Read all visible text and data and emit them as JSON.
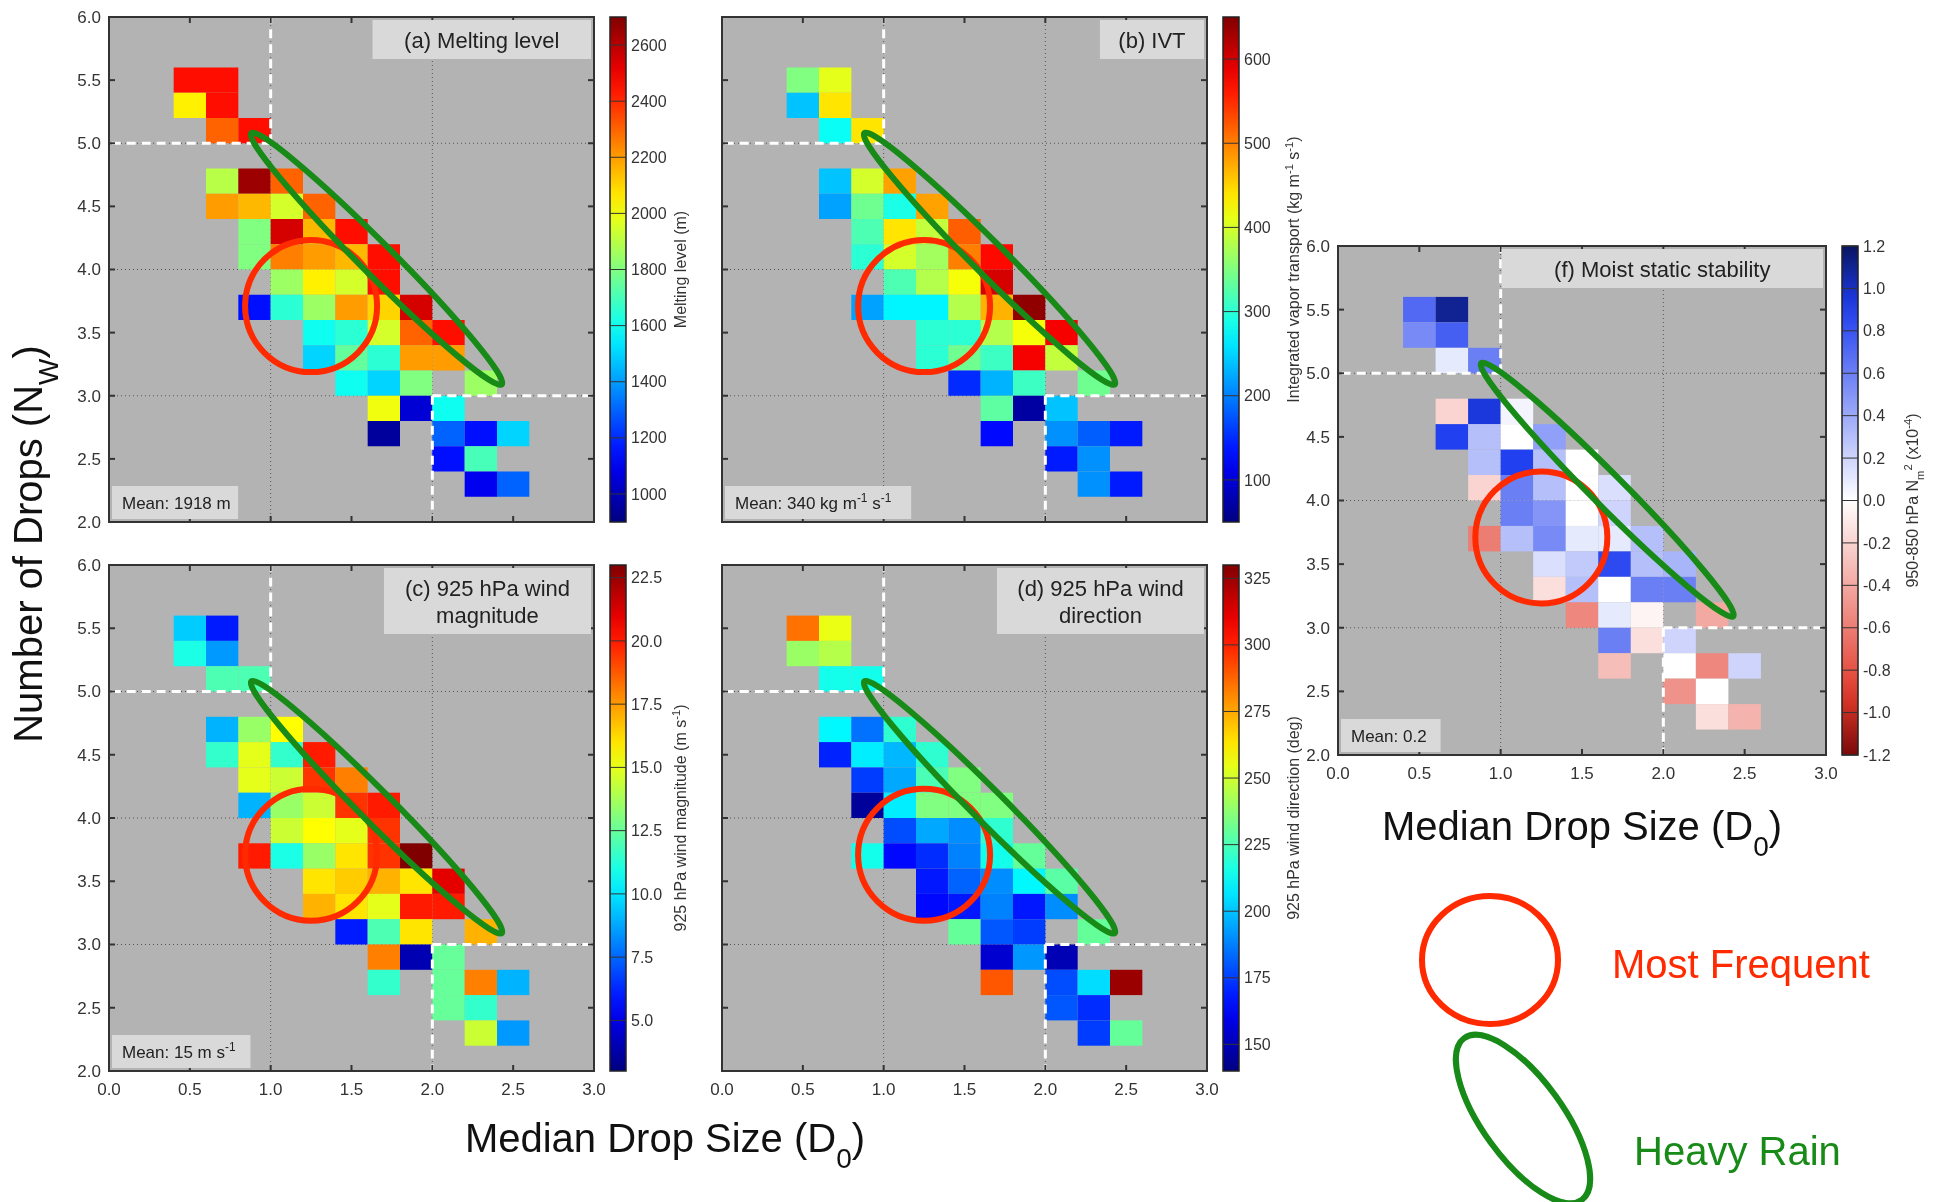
{
  "chart_data": [
    {
      "type": "scatter",
      "marker": "square",
      "title": "(a) Melting level",
      "ylabel": "Number of Drops (N$_{W}$)",
      "clabel": "Melting level (m)",
      "annotations": [
        "Mean: 1918 m"
      ],
      "tick_labels": "y",
      "grid": true,
      "xlim": [
        0,
        3
      ],
      "ylim": [
        2,
        6
      ],
      "xticks": [
        0,
        0.5,
        1,
        1.5,
        2,
        2.5,
        3
      ],
      "yticks": [
        {
          "value": 2,
          "label": "2.0"
        },
        2.5,
        {
          "value": 3,
          "label": "3.0"
        },
        3.5,
        {
          "value": 4,
          "label": "4.0"
        },
        4.5,
        {
          "value": 5,
          "label": "5.0"
        },
        5.5,
        {
          "value": 6,
          "label": "6.0"
        }
      ],
      "clim": [
        900,
        2700
      ],
      "cticks": [
        1000,
        1200,
        1400,
        1600,
        1800,
        2000,
        2200,
        2400,
        2600
      ],
      "ref_lines": [
        {
          "axis": "x",
          "value": 1,
          "color": "#ffffff",
          "line_style": "dashed"
        },
        {
          "axis": "y",
          "value": 5,
          "color": "#ffffff",
          "line_style": "dashed"
        },
        {
          "axis": "x",
          "value": 2,
          "color": "#ffffff",
          "line_style": "dashed"
        },
        {
          "axis": "y",
          "value": 3,
          "color": "#ffffff",
          "line_style": "dashed"
        }
      ],
      "x": [
        0.5,
        0.7,
        0.5,
        0.7,
        0.7,
        0.9,
        0.7,
        0.9,
        1.1,
        0.7,
        0.9,
        1.1,
        1.3,
        0.9,
        1.1,
        1.3,
        1.5,
        0.9,
        1.1,
        1.3,
        1.5,
        1.7,
        1.1,
        1.3,
        1.5,
        1.7,
        0.9,
        1.1,
        1.3,
        1.5,
        1.7,
        1.9,
        1.3,
        1.5,
        1.7,
        1.9,
        2.1,
        1.3,
        1.5,
        1.7,
        1.9,
        2.1,
        1.5,
        1.7,
        1.9,
        2.3,
        1.7,
        1.9,
        2.1,
        1.7,
        2.1,
        2.3,
        2.5,
        2.1,
        2.3,
        2.3,
        2.5
      ],
      "values": [
        5.5,
        5.5,
        5.3,
        5.3,
        5.1,
        5.1,
        4.7,
        4.7,
        4.7,
        4.5,
        4.5,
        4.5,
        4.5,
        4.3,
        4.3,
        4.3,
        4.3,
        4.1,
        4.1,
        4.1,
        4.1,
        4.1,
        3.9,
        3.9,
        3.9,
        3.9,
        3.7,
        3.7,
        3.7,
        3.7,
        3.7,
        3.7,
        3.5,
        3.5,
        3.5,
        3.5,
        3.5,
        3.3,
        3.3,
        3.3,
        3.3,
        3.3,
        3.1,
        3.1,
        3.1,
        3.1,
        2.9,
        2.9,
        2.9,
        2.7,
        2.7,
        2.7,
        2.7,
        2.5,
        2.5,
        2.3,
        2.3
      ],
      "cvalues": [
        2450,
        2450,
        2050,
        2450,
        2300,
        2450,
        1900,
        2650,
        2300,
        2200,
        2150,
        1950,
        2300,
        1800,
        2550,
        2150,
        2450,
        1800,
        2250,
        2200,
        2150,
        2450,
        1850,
        2050,
        1950,
        2450,
        1150,
        1650,
        1850,
        2200,
        2100,
        2550,
        1600,
        1650,
        1950,
        2300,
        2450,
        1500,
        1750,
        1650,
        2200,
        2200,
        1600,
        1500,
        1800,
        1850,
        2000,
        1050,
        1600,
        950,
        1300,
        1150,
        1500,
        1150,
        1700,
        1100,
        1300
      ]
    },
    {
      "type": "scatter",
      "marker": "square",
      "title": "(b) IVT",
      "clabel": "Integrated vapor transport (kg m$^{-1}$ s$^{-1}$)",
      "annotations": [
        "Mean: 340 kg m$^{-1}$ s$^{-1}$"
      ],
      "tick_labels": false,
      "grid": true,
      "xlim": [
        0,
        3
      ],
      "ylim": [
        2,
        6
      ],
      "xticks": [
        0,
        0.5,
        1,
        1.5,
        2,
        2.5,
        3
      ],
      "yticks": [
        2,
        2.5,
        3,
        3.5,
        4,
        4.5,
        5,
        5.5,
        6
      ],
      "clim": [
        50,
        650
      ],
      "cticks": [
        100,
        200,
        300,
        400,
        500,
        600
      ],
      "ref_lines": [
        {
          "axis": "x",
          "value": 1,
          "color": "#ffffff",
          "line_style": "dashed"
        },
        {
          "axis": "y",
          "value": 5,
          "color": "#ffffff",
          "line_style": "dashed"
        },
        {
          "axis": "x",
          "value": 2,
          "color": "#ffffff",
          "line_style": "dashed"
        },
        {
          "axis": "y",
          "value": 3,
          "color": "#ffffff",
          "line_style": "dashed"
        }
      ],
      "x": [
        0.5,
        0.7,
        0.5,
        0.7,
        0.7,
        0.9,
        0.7,
        0.9,
        1.1,
        0.7,
        0.9,
        1.1,
        1.3,
        0.9,
        1.1,
        1.3,
        1.5,
        0.9,
        1.1,
        1.3,
        1.5,
        1.7,
        1.1,
        1.3,
        1.5,
        1.7,
        0.9,
        1.1,
        1.3,
        1.5,
        1.7,
        1.9,
        1.3,
        1.5,
        1.7,
        1.9,
        2.1,
        1.3,
        1.5,
        1.7,
        1.9,
        2.1,
        1.5,
        1.7,
        1.9,
        2.3,
        1.7,
        1.9,
        2.1,
        1.7,
        2.1,
        2.3,
        2.5,
        2.1,
        2.3,
        2.3,
        2.5
      ],
      "values": [
        5.5,
        5.5,
        5.3,
        5.3,
        5.1,
        5.1,
        4.7,
        4.7,
        4.7,
        4.5,
        4.5,
        4.5,
        4.5,
        4.3,
        4.3,
        4.3,
        4.3,
        4.1,
        4.1,
        4.1,
        4.1,
        4.1,
        3.9,
        3.9,
        3.9,
        3.9,
        3.7,
        3.7,
        3.7,
        3.7,
        3.7,
        3.7,
        3.5,
        3.5,
        3.5,
        3.5,
        3.5,
        3.3,
        3.3,
        3.3,
        3.3,
        3.3,
        3.1,
        3.1,
        3.1,
        3.1,
        2.9,
        2.9,
        2.9,
        2.7,
        2.7,
        2.7,
        2.7,
        2.5,
        2.5,
        2.3,
        2.3
      ],
      "cvalues": [
        350,
        410,
        240,
        440,
        280,
        440,
        240,
        400,
        480,
        220,
        340,
        290,
        480,
        320,
        440,
        390,
        520,
        300,
        400,
        370,
        500,
        570,
        320,
        380,
        420,
        600,
        220,
        270,
        270,
        380,
        470,
        640,
        300,
        300,
        380,
        420,
        580,
        300,
        340,
        310,
        580,
        390,
        150,
        230,
        310,
        340,
        330,
        70,
        240,
        130,
        210,
        180,
        140,
        140,
        210,
        210,
        140
      ]
    },
    {
      "type": "scatter",
      "marker": "square",
      "title": "(c) 925 hPa wind magnitude",
      "xlabel": "Median Drop Size (D$_{0}$)",
      "clabel": "925 hPa wind magnitude (m s$^{-1}$)",
      "annotations": [
        "Mean: 15 m s$^{-1}$"
      ],
      "grid": true,
      "xlim": [
        0,
        3
      ],
      "ylim": [
        2,
        6
      ],
      "xticks": [
        {
          "value": 0,
          "label": "0.0"
        },
        0.5,
        {
          "value": 1,
          "label": "1.0"
        },
        1.5,
        {
          "value": 2,
          "label": "2.0"
        },
        2.5,
        {
          "value": 3,
          "label": "3.0"
        }
      ],
      "yticks": [
        {
          "value": 2,
          "label": "2.0"
        },
        2.5,
        {
          "value": 3,
          "label": "3.0"
        },
        3.5,
        {
          "value": 4,
          "label": "4.0"
        },
        4.5,
        {
          "value": 5,
          "label": "5.0"
        },
        5.5,
        {
          "value": 6,
          "label": "6.0"
        }
      ],
      "clim": [
        3,
        23
      ],
      "cticks": [
        {
          "value": 5,
          "label": "5.0"
        },
        7.5,
        {
          "value": 10,
          "label": "10.0"
        },
        12.5,
        {
          "value": 15,
          "label": "15.0"
        },
        17.5,
        {
          "value": 20,
          "label": "20.0"
        },
        22.5
      ],
      "ref_lines": [
        {
          "axis": "x",
          "value": 1,
          "color": "#ffffff",
          "line_style": "dashed"
        },
        {
          "axis": "y",
          "value": 5,
          "color": "#ffffff",
          "line_style": "dashed"
        },
        {
          "axis": "x",
          "value": 2,
          "color": "#ffffff",
          "line_style": "dashed"
        },
        {
          "axis": "y",
          "value": 3,
          "color": "#ffffff",
          "line_style": "dashed"
        }
      ],
      "x": [
        0.5,
        0.7,
        0.5,
        0.7,
        0.7,
        0.9,
        0.7,
        0.9,
        1.1,
        0.7,
        0.9,
        1.1,
        1.3,
        0.9,
        1.1,
        1.3,
        1.5,
        0.9,
        1.1,
        1.3,
        1.5,
        1.7,
        1.1,
        1.3,
        1.5,
        1.7,
        0.9,
        1.1,
        1.3,
        1.5,
        1.7,
        1.9,
        1.3,
        1.5,
        1.7,
        1.9,
        2.1,
        1.3,
        1.5,
        1.7,
        1.9,
        2.1,
        1.5,
        1.7,
        1.9,
        2.3,
        1.7,
        1.9,
        2.1,
        1.7,
        2.1,
        2.3,
        2.5,
        2.1,
        2.3,
        2.3,
        2.5
      ],
      "values": [
        5.5,
        5.5,
        5.3,
        5.3,
        5.1,
        5.1,
        4.7,
        4.7,
        4.7,
        4.5,
        4.5,
        4.5,
        4.5,
        4.3,
        4.3,
        4.3,
        4.3,
        4.1,
        4.1,
        4.1,
        4.1,
        4.1,
        3.9,
        3.9,
        3.9,
        3.9,
        3.7,
        3.7,
        3.7,
        3.7,
        3.7,
        3.7,
        3.5,
        3.5,
        3.5,
        3.5,
        3.5,
        3.3,
        3.3,
        3.3,
        3.3,
        3.3,
        3.1,
        3.1,
        3.1,
        3.1,
        2.9,
        2.9,
        2.9,
        2.7,
        2.7,
        2.7,
        2.7,
        2.5,
        2.5,
        2.3,
        2.3
      ],
      "cvalues": [
        9.5,
        6,
        11,
        8.5,
        12,
        12,
        9,
        13.5,
        15.5,
        11.5,
        15,
        11.5,
        20,
        15,
        14.5,
        19.5,
        18,
        9,
        13.5,
        14.5,
        19.5,
        20,
        14.5,
        15.5,
        15,
        19.5,
        20,
        11,
        13.5,
        16,
        19.5,
        23,
        16,
        16.5,
        17,
        16,
        21,
        17,
        16,
        15,
        20,
        20,
        6,
        12,
        16,
        17,
        18,
        4,
        12.5,
        11.5,
        12.5,
        18,
        9,
        12.5,
        11.5,
        14.5,
        8.5
      ]
    },
    {
      "type": "scatter",
      "marker": "square",
      "title": "(d) 925 hPa wind direction",
      "clabel": "925 hPa wind direction (deg)",
      "tick_labels": "x",
      "grid": true,
      "xlim": [
        0,
        3
      ],
      "ylim": [
        2,
        6
      ],
      "xticks": [
        {
          "value": 0,
          "label": "0.0"
        },
        0.5,
        {
          "value": 1,
          "label": "1.0"
        },
        1.5,
        {
          "value": 2,
          "label": "2.0"
        },
        2.5,
        {
          "value": 3,
          "label": "3.0"
        }
      ],
      "yticks": [
        2,
        2.5,
        3,
        3.5,
        4,
        4.5,
        5,
        5.5,
        6
      ],
      "clim": [
        140,
        330
      ],
      "cticks": [
        150,
        175,
        200,
        225,
        250,
        275,
        300,
        325
      ],
      "ref_lines": [
        {
          "axis": "x",
          "value": 1,
          "color": "#ffffff",
          "line_style": "dashed"
        },
        {
          "axis": "y",
          "value": 5,
          "color": "#ffffff",
          "line_style": "dashed"
        },
        {
          "axis": "x",
          "value": 2,
          "color": "#ffffff",
          "line_style": "dashed"
        },
        {
          "axis": "y",
          "value": 3,
          "color": "#ffffff",
          "line_style": "dashed"
        }
      ],
      "x": [
        0.5,
        0.7,
        0.5,
        0.7,
        0.7,
        0.9,
        0.7,
        0.9,
        1.1,
        0.7,
        0.9,
        1.1,
        1.3,
        0.9,
        1.1,
        1.3,
        1.5,
        0.9,
        1.1,
        1.3,
        1.5,
        1.7,
        1.1,
        1.3,
        1.5,
        1.7,
        0.9,
        1.1,
        1.3,
        1.5,
        1.7,
        1.9,
        1.3,
        1.5,
        1.7,
        1.9,
        2.1,
        1.3,
        1.5,
        1.7,
        1.9,
        2.1,
        1.5,
        1.7,
        1.9,
        2.3,
        1.7,
        1.9,
        2.1,
        1.7,
        2.1,
        2.3,
        2.5,
        2.1,
        2.3,
        2.3,
        2.5
      ],
      "values": [
        5.5,
        5.5,
        5.3,
        5.3,
        5.1,
        5.1,
        4.7,
        4.7,
        4.7,
        4.5,
        4.5,
        4.5,
        4.5,
        4.3,
        4.3,
        4.3,
        4.3,
        4.1,
        4.1,
        4.1,
        4.1,
        4.1,
        3.9,
        3.9,
        3.9,
        3.9,
        3.7,
        3.7,
        3.7,
        3.7,
        3.7,
        3.7,
        3.5,
        3.5,
        3.5,
        3.5,
        3.5,
        3.3,
        3.3,
        3.3,
        3.3,
        3.3,
        3.1,
        3.1,
        3.1,
        3.1,
        2.9,
        2.9,
        2.9,
        2.7,
        2.7,
        2.7,
        2.7,
        2.5,
        2.5,
        2.3,
        2.3
      ],
      "cvalues": [
        285,
        255,
        240,
        245,
        215,
        215,
        210,
        185,
        220,
        170,
        208,
        198,
        220,
        175,
        195,
        225,
        235,
        145,
        208,
        235,
        235,
        235,
        178,
        195,
        190,
        220,
        215,
        165,
        172,
        188,
        215,
        230,
        168,
        182,
        190,
        210,
        228,
        165,
        168,
        188,
        168,
        190,
        230,
        180,
        175,
        230,
        155,
        192,
        150,
        290,
        178,
        205,
        325,
        180,
        172,
        175,
        230
      ]
    },
    {
      "type": "scatter",
      "marker": "square",
      "title": "(f) Moist static stability",
      "xlabel": "Median Drop Size (D$_{0}$)",
      "clabel": "950-850 hPa N$_{m}$$^{2}$ (x10$^{-4}$)",
      "annotations": [
        "Mean: 0.2"
      ],
      "grid": true,
      "xlim": [
        0,
        3
      ],
      "ylim": [
        2,
        6
      ],
      "xticks": [
        {
          "value": 0,
          "label": "0.0"
        },
        0.5,
        {
          "value": 1,
          "label": "1.0"
        },
        1.5,
        {
          "value": 2,
          "label": "2.0"
        },
        2.5,
        {
          "value": 3,
          "label": "3.0"
        }
      ],
      "yticks": [
        {
          "value": 2,
          "label": "2.0"
        },
        2.5,
        {
          "value": 3,
          "label": "3.0"
        },
        3.5,
        {
          "value": 4,
          "label": "4.0"
        },
        4.5,
        {
          "value": 5,
          "label": "5.0"
        },
        5.5,
        {
          "value": 6,
          "label": "6.0"
        }
      ],
      "clim": [
        -1.2,
        1.2
      ],
      "cticks": [
        -1.2,
        {
          "value": -1,
          "label": "-1.0"
        },
        -0.8,
        -0.6,
        -0.4,
        -0.2,
        {
          "value": 0,
          "label": "0.0"
        },
        0.2,
        0.4,
        0.6,
        0.8,
        {
          "value": 1,
          "label": "1.0"
        },
        1.2
      ],
      "ref_lines": [
        {
          "axis": "x",
          "value": 1,
          "color": "#ffffff",
          "line_style": "dashed"
        },
        {
          "axis": "y",
          "value": 5,
          "color": "#ffffff",
          "line_style": "dashed"
        },
        {
          "axis": "x",
          "value": 2,
          "color": "#ffffff",
          "line_style": "dashed"
        },
        {
          "axis": "y",
          "value": 3,
          "color": "#ffffff",
          "line_style": "dashed"
        }
      ],
      "x": [
        0.5,
        0.7,
        0.5,
        0.7,
        0.7,
        0.9,
        0.7,
        0.9,
        1.1,
        0.7,
        0.9,
        1.1,
        1.3,
        0.9,
        1.1,
        1.3,
        1.5,
        0.9,
        1.1,
        1.3,
        1.5,
        1.7,
        1.1,
        1.3,
        1.5,
        1.7,
        0.9,
        1.1,
        1.3,
        1.5,
        1.7,
        1.9,
        1.3,
        1.5,
        1.7,
        1.9,
        2.1,
        1.3,
        1.5,
        1.7,
        1.9,
        2.1,
        1.5,
        1.7,
        1.9,
        2.3,
        1.7,
        1.9,
        2.1,
        1.7,
        2.1,
        2.3,
        2.5,
        2.1,
        2.3,
        2.3,
        2.5
      ],
      "values": [
        5.5,
        5.5,
        5.3,
        5.3,
        5.1,
        5.1,
        4.7,
        4.7,
        4.7,
        4.5,
        4.5,
        4.5,
        4.5,
        4.3,
        4.3,
        4.3,
        4.3,
        4.1,
        4.1,
        4.1,
        4.1,
        4.1,
        3.9,
        3.9,
        3.9,
        3.9,
        3.7,
        3.7,
        3.7,
        3.7,
        3.7,
        3.7,
        3.5,
        3.5,
        3.5,
        3.5,
        3.5,
        3.3,
        3.3,
        3.3,
        3.3,
        3.3,
        3.1,
        3.1,
        3.1,
        3.1,
        2.9,
        2.9,
        2.9,
        2.7,
        2.7,
        2.7,
        2.7,
        2.5,
        2.5,
        2.3,
        2.3
      ],
      "cvalues": [
        0.7,
        1.1,
        0.55,
        0.75,
        0.1,
        0.6,
        -0.2,
        0.95,
        0.05,
        0.9,
        0.3,
        0,
        0.45,
        0.3,
        0.9,
        0.3,
        0,
        -0.2,
        0.6,
        0.3,
        0,
        0.15,
        0.6,
        0.5,
        0,
        0.2,
        -0.6,
        0.3,
        0.55,
        0.1,
        0.1,
        0.3,
        0.15,
        0.25,
        0.85,
        0.3,
        0.35,
        -0.15,
        0.3,
        0,
        0.6,
        0.6,
        -0.55,
        0.1,
        -0.05,
        -0.4,
        0.6,
        -0.15,
        0.2,
        -0.3,
        0,
        -0.55,
        0.2,
        -0.5,
        0,
        -0.15,
        -0.35
      ]
    },
    {
      "type": "other",
      "annotations": [
        "Most Frequent",
        "Heavy Rain"
      ]
    }
  ]
}
